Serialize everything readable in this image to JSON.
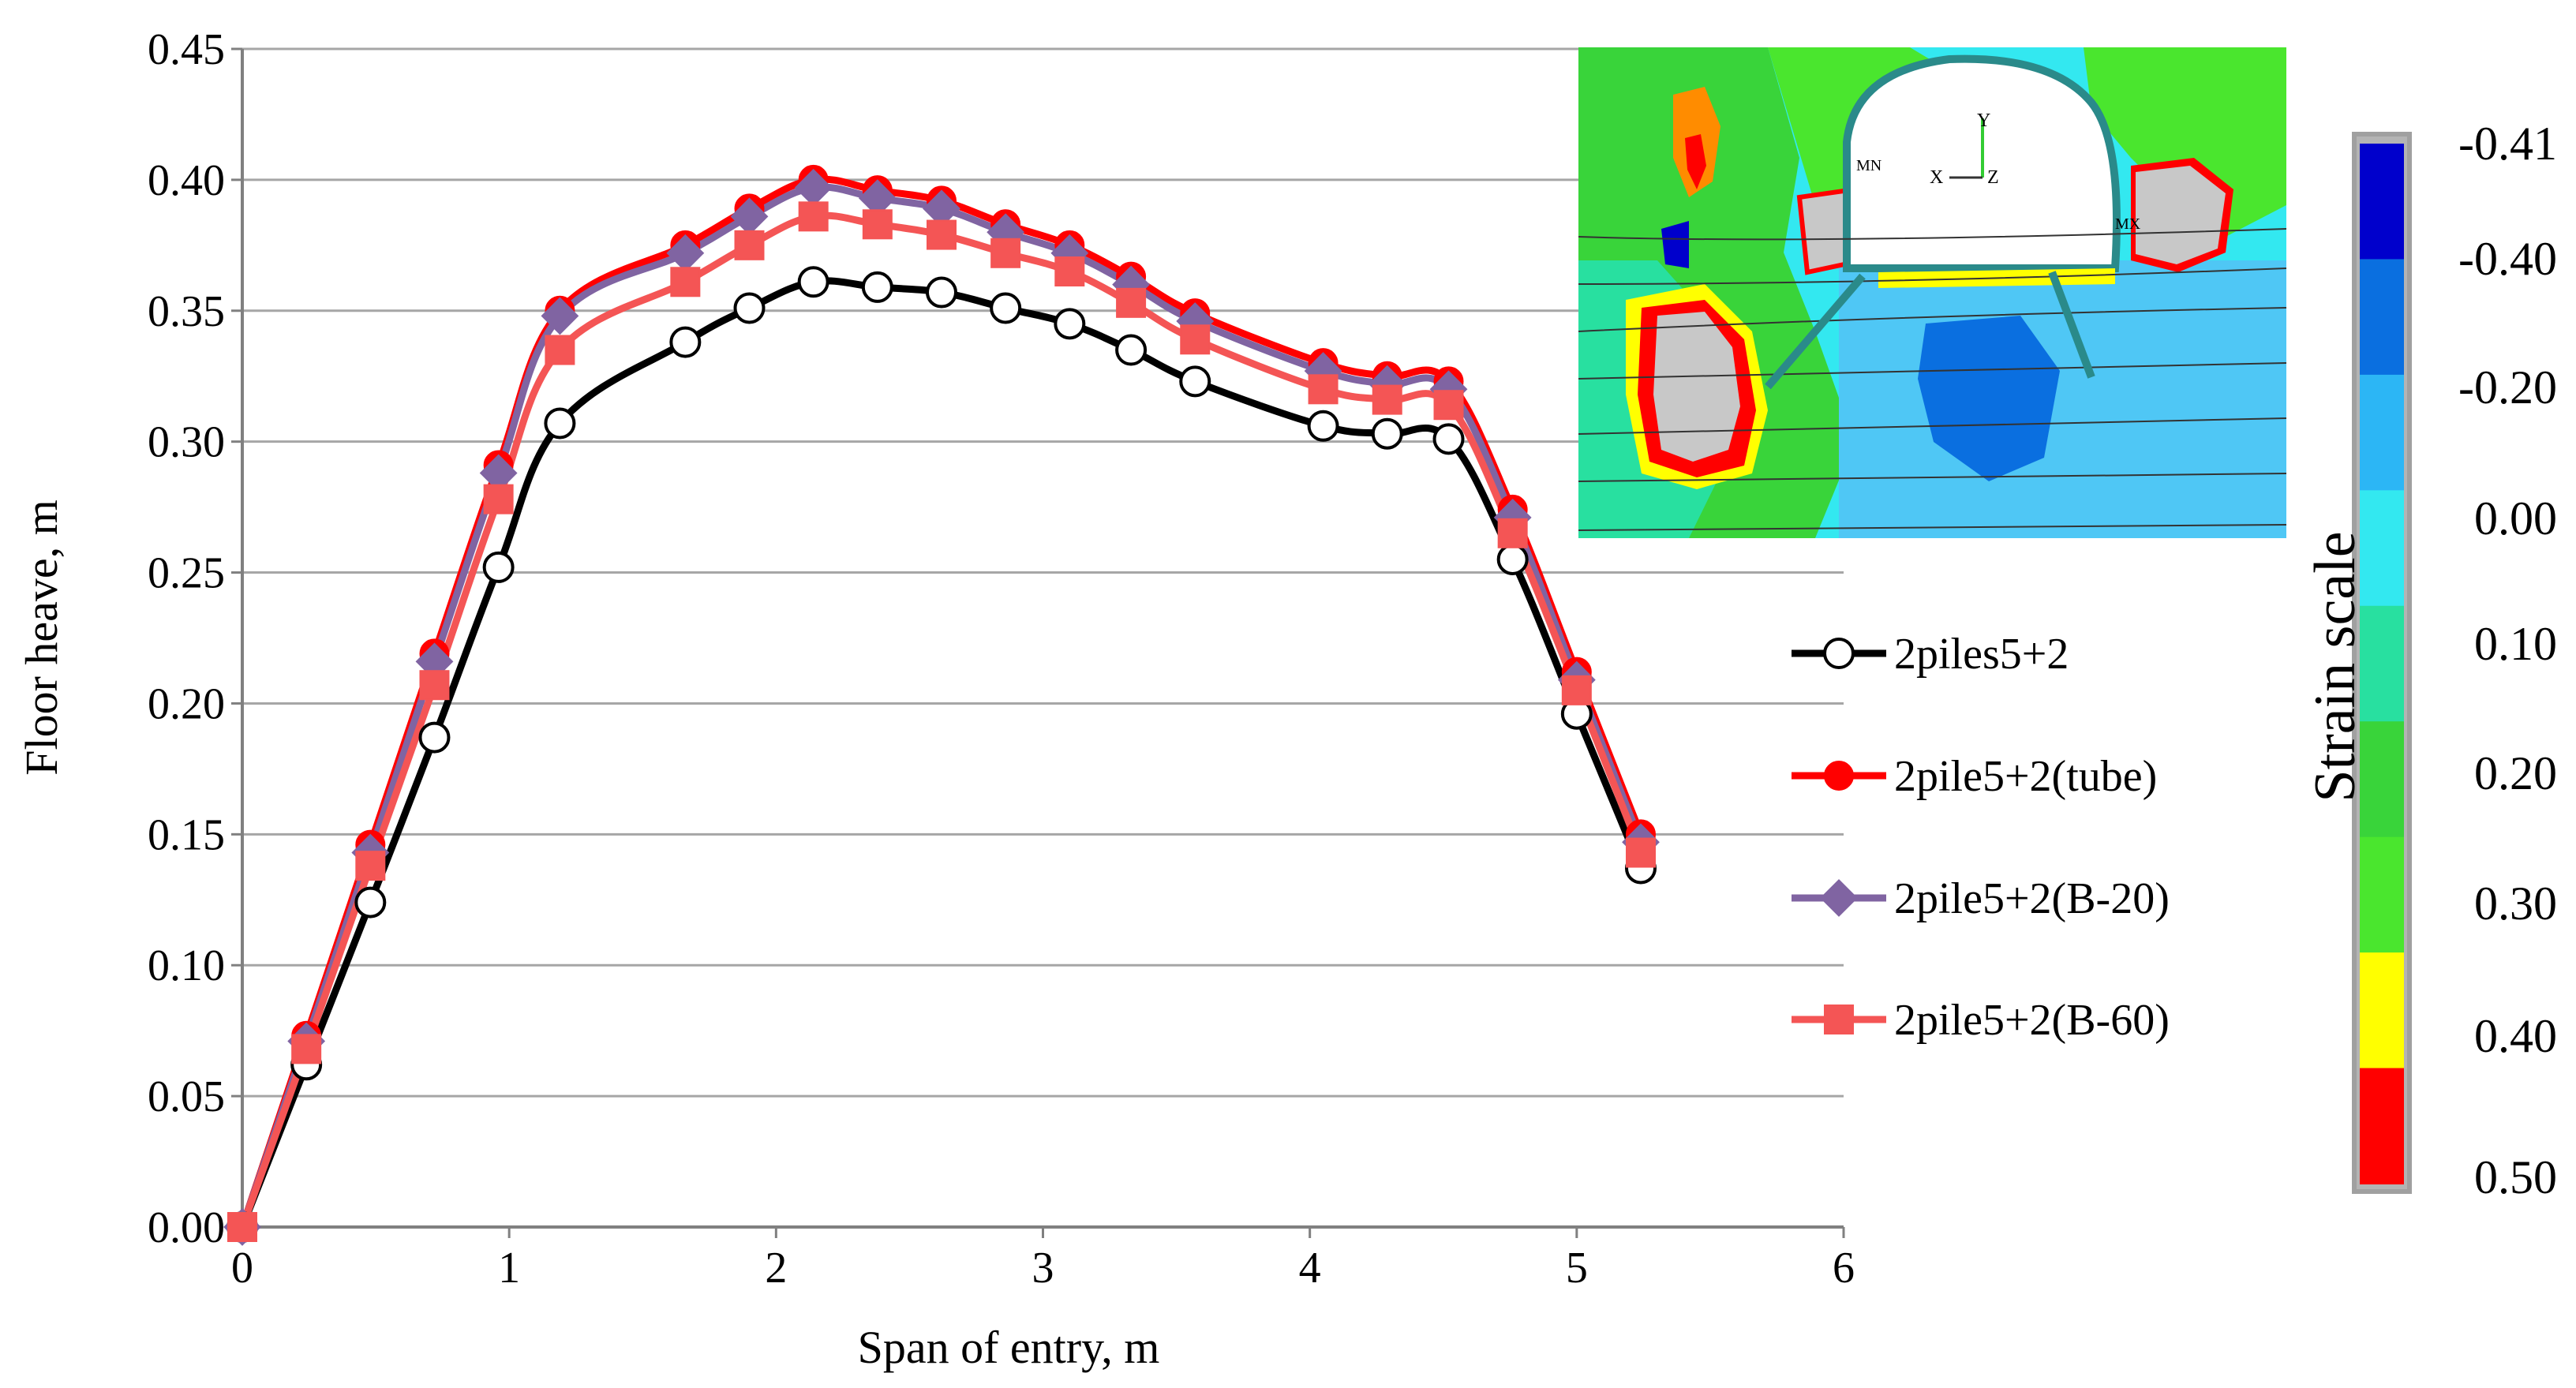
{
  "chart_data": {
    "type": "line",
    "title": "",
    "xlabel": "Span of entry, m",
    "ylabel": "Floor heave, m",
    "xlim": [
      0,
      6
    ],
    "ylim": [
      0,
      0.45
    ],
    "x_ticks": [
      "0",
      "1",
      "2",
      "3",
      "4",
      "5",
      "6"
    ],
    "y_ticks": [
      "0.00",
      "0.05",
      "0.10",
      "0.15",
      "0.20",
      "0.25",
      "0.30",
      "0.35",
      "0.40",
      "0.45"
    ],
    "grid": true,
    "legend_position": "right",
    "series": [
      {
        "name": "2piles5+2",
        "color": "#000000",
        "marker": "circle-open",
        "x": [
          0,
          0.24,
          0.48,
          0.72,
          0.96,
          1.19,
          1.66,
          1.9,
          2.14,
          2.38,
          2.62,
          2.86,
          3.1,
          3.33,
          3.57,
          4.05,
          4.29,
          4.52,
          4.76,
          5.0,
          5.24
        ],
        "y": [
          0.0,
          0.062,
          0.124,
          0.187,
          0.252,
          0.307,
          0.338,
          0.351,
          0.361,
          0.359,
          0.357,
          0.351,
          0.345,
          0.335,
          0.323,
          0.306,
          0.303,
          0.301,
          0.255,
          0.196,
          0.137
        ]
      },
      {
        "name": "2pile5+2(tube)",
        "color": "#ff0000",
        "marker": "circle-filled",
        "x": [
          0,
          0.24,
          0.48,
          0.72,
          0.96,
          1.19,
          1.66,
          1.9,
          2.14,
          2.38,
          2.62,
          2.86,
          3.1,
          3.33,
          3.57,
          4.05,
          4.29,
          4.52,
          4.76,
          5.0,
          5.24
        ],
        "y": [
          0.0,
          0.073,
          0.146,
          0.219,
          0.291,
          0.35,
          0.375,
          0.389,
          0.4,
          0.396,
          0.392,
          0.383,
          0.375,
          0.363,
          0.349,
          0.33,
          0.325,
          0.323,
          0.274,
          0.212,
          0.15
        ]
      },
      {
        "name": "2pile5+2(B-20)",
        "color": "#8064a2",
        "marker": "diamond",
        "x": [
          0,
          0.24,
          0.48,
          0.72,
          0.96,
          1.19,
          1.66,
          1.9,
          2.14,
          2.38,
          2.62,
          2.86,
          3.1,
          3.33,
          3.57,
          4.05,
          4.29,
          4.52,
          4.76,
          5.0,
          5.24
        ],
        "y": [
          0.0,
          0.071,
          0.143,
          0.216,
          0.288,
          0.348,
          0.372,
          0.386,
          0.397,
          0.393,
          0.389,
          0.38,
          0.372,
          0.36,
          0.346,
          0.327,
          0.322,
          0.32,
          0.271,
          0.209,
          0.147
        ]
      },
      {
        "name": "2pile5+2(B-60)",
        "color": "#f45555",
        "marker": "square",
        "x": [
          0,
          0.24,
          0.48,
          0.72,
          0.96,
          1.19,
          1.66,
          1.9,
          2.14,
          2.38,
          2.62,
          2.86,
          3.1,
          3.33,
          3.57,
          4.05,
          4.29,
          4.52,
          4.76,
          5.0,
          5.24
        ],
        "y": [
          0.0,
          0.068,
          0.138,
          0.207,
          0.278,
          0.335,
          0.361,
          0.375,
          0.386,
          0.383,
          0.379,
          0.372,
          0.365,
          0.353,
          0.339,
          0.32,
          0.316,
          0.314,
          0.265,
          0.205,
          0.143
        ]
      }
    ]
  },
  "strain_scale": {
    "title": "Strain scale",
    "labels": [
      "-0.41",
      "-0.40",
      "-0.20",
      "0.00",
      "0.10",
      "0.20",
      "0.30",
      "0.40",
      "0.50"
    ],
    "colors": [
      "#0000cc",
      "#0a6fe0",
      "#2cb6f5",
      "#33e8f0",
      "#28e0a0",
      "#39d43a",
      "#4ae62e",
      "#ffff00",
      "#ff0000"
    ]
  },
  "inset": {
    "axis_labels": [
      "X",
      "Y",
      "Z"
    ],
    "node_labels": [
      "MN",
      "MX"
    ]
  }
}
